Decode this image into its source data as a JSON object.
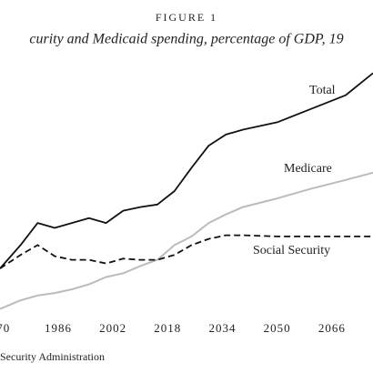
{
  "chart_data": {
    "type": "line",
    "figure_label": "FIGURE 1",
    "title": "curity and Medicaid spending, percentage of GDP, 19",
    "source": "Security Administration",
    "x": [
      1969,
      1975,
      1980,
      1985,
      1990,
      1995,
      2000,
      2005,
      2010,
      2015,
      2020,
      2025,
      2030,
      2035,
      2040,
      2050,
      2060,
      2070,
      2078
    ],
    "xlim": [
      1969,
      2078
    ],
    "xticks": [
      {
        "value": 1970,
        "label": "70"
      },
      1986,
      2002,
      2018,
      2034,
      2050,
      2066
    ],
    "ylim": [
      0,
      20
    ],
    "series": [
      {
        "name": "Total",
        "color": "#111111",
        "style": "solid",
        "values": [
          3.7,
          5.6,
          7.4,
          7.0,
          7.4,
          7.8,
          7.4,
          8.4,
          8.7,
          8.9,
          10.0,
          11.9,
          13.7,
          14.6,
          15.0,
          15.6,
          16.7,
          17.8,
          19.6
        ]
      },
      {
        "name": "Medicare",
        "color": "#bbbbbb",
        "style": "solid",
        "values": [
          0.4,
          1.1,
          1.5,
          1.7,
          2.0,
          2.4,
          3.0,
          3.3,
          3.9,
          4.4,
          5.6,
          6.3,
          7.4,
          8.1,
          8.7,
          9.4,
          10.2,
          10.9,
          11.5
        ]
      },
      {
        "name": "Social Security",
        "color": "#111111",
        "style": "dashed",
        "values": [
          3.7,
          4.8,
          5.6,
          4.7,
          4.4,
          4.4,
          4.1,
          4.5,
          4.4,
          4.4,
          4.8,
          5.6,
          6.1,
          6.4,
          6.4,
          6.3,
          6.3,
          6.3,
          6.3
        ]
      }
    ]
  }
}
